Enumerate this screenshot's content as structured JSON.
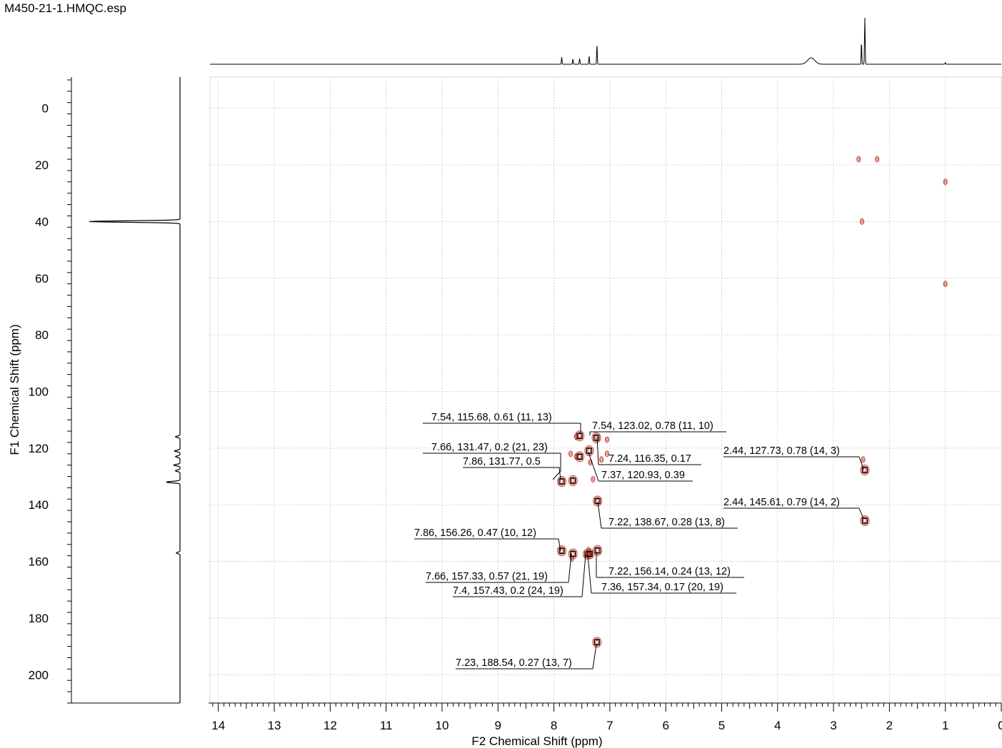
{
  "title": "M450-21-1.HMQC.esp",
  "chart_data": {
    "type": "scatter",
    "title": "M450-21-1.HMQC.esp",
    "xlabel": "F2 Chemical Shift (ppm)",
    "ylabel": "F1 Chemical Shift (ppm)",
    "xlim": [
      14.15,
      0
    ],
    "ylim": [
      -11,
      210
    ],
    "x_reversed": true,
    "x_ticks": [
      14,
      13,
      12,
      11,
      10,
      9,
      8,
      7,
      6,
      5,
      4,
      3,
      2,
      1,
      0
    ],
    "y_ticks": [
      0,
      20,
      40,
      60,
      80,
      100,
      120,
      140,
      160,
      180,
      200
    ],
    "grid": true,
    "colors": {
      "contour": "#c0392b",
      "peak_box": "#000000",
      "trace": "#000000",
      "grid": "#c8c8c8"
    },
    "peaks": [
      {
        "x": 7.54,
        "y": 115.68,
        "label": "7.54, 115.68, 0.61 (11, 13)"
      },
      {
        "x": 7.54,
        "y": 123.02,
        "label": "7.54, 123.02, 0.78 (11, 10)"
      },
      {
        "x": 7.66,
        "y": 131.47,
        "label": "7.66, 131.47, 0.2 (21, 23)"
      },
      {
        "x": 7.24,
        "y": 116.35,
        "label": "7.24, 116.35, 0.17"
      },
      {
        "x": 7.86,
        "y": 131.77,
        "label": "7.86, 131.77, 0.5"
      },
      {
        "x": 7.37,
        "y": 120.93,
        "label": "7.37, 120.93, 0.39"
      },
      {
        "x": 2.44,
        "y": 127.73,
        "label": "2.44, 127.73, 0.78 (14, 3)"
      },
      {
        "x": 2.44,
        "y": 145.61,
        "label": "2.44, 145.61, 0.79 (14, 2)"
      },
      {
        "x": 7.22,
        "y": 138.67,
        "label": "7.22, 138.67, 0.28 (13, 8)"
      },
      {
        "x": 7.86,
        "y": 156.26,
        "label": "7.86, 156.26, 0.47 (10, 12)"
      },
      {
        "x": 7.66,
        "y": 157.33,
        "label": "7.66, 157.33, 0.57 (21, 19)"
      },
      {
        "x": 7.22,
        "y": 156.14,
        "label": "7.22, 156.14, 0.24 (13, 12)"
      },
      {
        "x": 7.4,
        "y": 157.43,
        "label": "7.4, 157.43, 0.2 (24, 19)"
      },
      {
        "x": 7.36,
        "y": 157.34,
        "label": "7.36, 157.34, 0.17 (20, 19)"
      },
      {
        "x": 7.23,
        "y": 188.54,
        "label": "7.23, 188.54, 0.27 (13, 7)"
      }
    ],
    "unlabeled_contours": [
      {
        "x": 2.55,
        "y": 18
      },
      {
        "x": 2.22,
        "y": 18
      },
      {
        "x": 1.0,
        "y": 26
      },
      {
        "x": 2.49,
        "y": 40
      },
      {
        "x": 1.0,
        "y": 62
      },
      {
        "x": 7.6,
        "y": 116
      },
      {
        "x": 7.05,
        "y": 117
      },
      {
        "x": 7.6,
        "y": 123
      },
      {
        "x": 7.35,
        "y": 125
      },
      {
        "x": 7.15,
        "y": 124
      },
      {
        "x": 7.05,
        "y": 122
      },
      {
        "x": 7.3,
        "y": 131
      },
      {
        "x": 7.7,
        "y": 122
      },
      {
        "x": 2.47,
        "y": 124
      },
      {
        "x": 7.68,
        "y": 159
      },
      {
        "x": 7.38,
        "y": 156
      }
    ],
    "f2_projection_peaks": [
      {
        "x": 7.86,
        "h": 0.12
      },
      {
        "x": 7.66,
        "h": 0.09
      },
      {
        "x": 7.54,
        "h": 0.1
      },
      {
        "x": 7.37,
        "h": 0.14
      },
      {
        "x": 7.23,
        "h": 0.33
      },
      {
        "x": 3.4,
        "h": 0.11
      },
      {
        "x": 2.5,
        "h": 0.38
      },
      {
        "x": 2.44,
        "h": 0.8
      },
      {
        "x": 1.0,
        "h": 0.03
      }
    ],
    "f1_projection_peaks": [
      {
        "y": 40,
        "h": 1.0
      },
      {
        "y": 116,
        "h": 0.05
      },
      {
        "y": 121,
        "h": 0.06
      },
      {
        "y": 123,
        "h": 0.05
      },
      {
        "y": 126,
        "h": 0.07
      },
      {
        "y": 128,
        "h": 0.05
      },
      {
        "y": 132,
        "h": 0.15
      },
      {
        "y": 157,
        "h": 0.04
      }
    ]
  }
}
